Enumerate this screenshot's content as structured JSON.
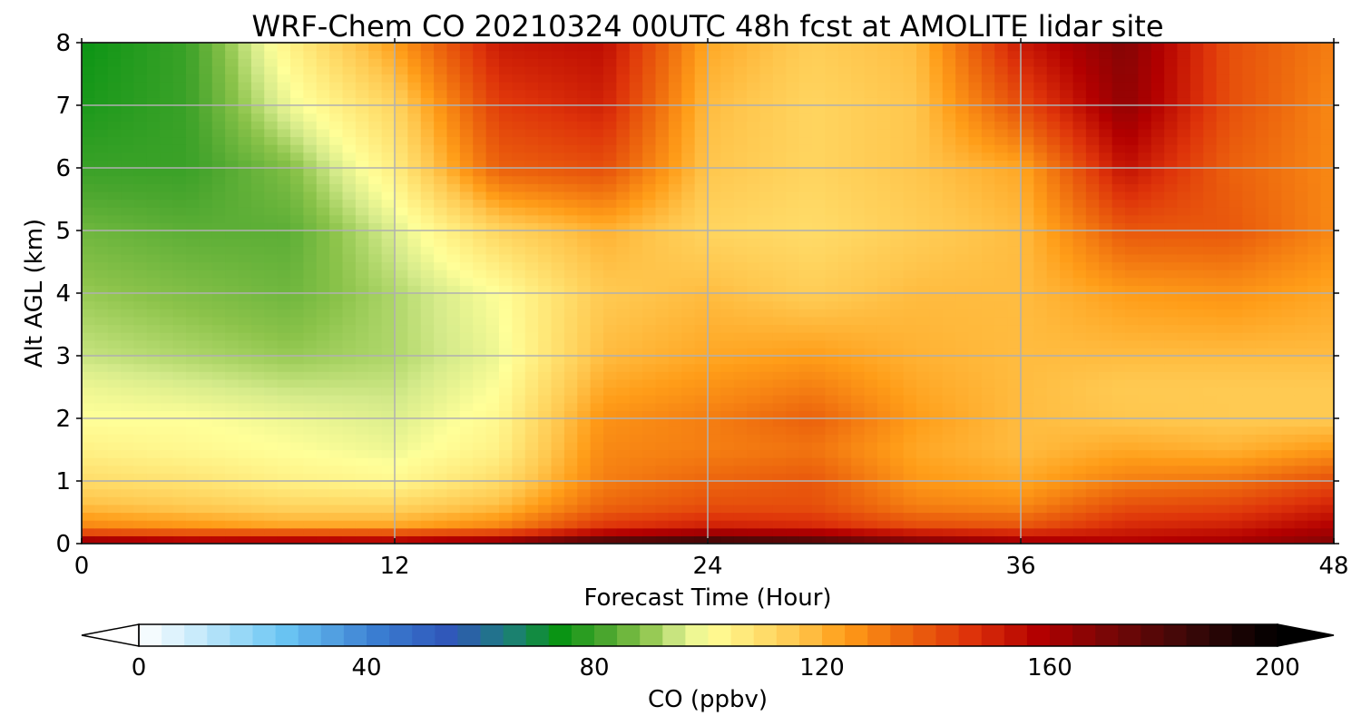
{
  "chart_data": {
    "type": "heatmap",
    "title": "WRF-Chem CO  20210324 00UTC 48h fcst at AMOLITE lidar site",
    "xlabel": "Forecast Time (Hour)",
    "ylabel": "Alt AGL (km)",
    "xlim": [
      0,
      48
    ],
    "ylim": [
      0,
      8
    ],
    "xticks": [
      "0",
      "12",
      "24",
      "36",
      "48"
    ],
    "yticks": [
      "0",
      "1",
      "2",
      "3",
      "4",
      "5",
      "6",
      "7",
      "8"
    ],
    "grid": true,
    "x_hours": [
      0,
      4,
      8,
      12,
      16,
      20,
      24,
      28,
      32,
      36,
      40,
      44,
      48
    ],
    "y_km": [
      0,
      0.1,
      0.3,
      0.6,
      1,
      1.5,
      2,
      2.5,
      3,
      4,
      5,
      6,
      7,
      8
    ],
    "values_ppbv": [
      [
        178,
        170,
        168,
        165,
        175,
        195,
        198,
        190,
        175,
        165,
        160,
        162,
        170
      ],
      [
        150,
        148,
        150,
        150,
        152,
        165,
        170,
        168,
        160,
        155,
        155,
        158,
        165
      ],
      [
        128,
        125,
        122,
        122,
        128,
        145,
        150,
        148,
        140,
        138,
        148,
        150,
        158
      ],
      [
        118,
        115,
        112,
        112,
        118,
        135,
        140,
        140,
        130,
        128,
        140,
        142,
        150
      ],
      [
        110,
        108,
        104,
        102,
        110,
        130,
        135,
        138,
        125,
        122,
        130,
        132,
        140
      ],
      [
        104,
        102,
        100,
        98,
        104,
        128,
        130,
        132,
        122,
        118,
        122,
        120,
        125
      ],
      [
        100,
        100,
        98,
        96,
        102,
        126,
        130,
        136,
        124,
        118,
        116,
        115,
        115
      ],
      [
        98,
        96,
        94,
        94,
        100,
        122,
        126,
        130,
        122,
        118,
        115,
        115,
        115
      ],
      [
        94,
        92,
        90,
        92,
        98,
        118,
        122,
        124,
        120,
        118,
        118,
        118,
        118
      ],
      [
        90,
        88,
        86,
        92,
        100,
        115,
        118,
        114,
        118,
        118,
        124,
        126,
        122
      ],
      [
        86,
        84,
        84,
        96,
        112,
        120,
        112,
        110,
        114,
        118,
        138,
        138,
        128
      ],
      [
        80,
        80,
        88,
        105,
        136,
        140,
        116,
        112,
        116,
        122,
        154,
        136,
        128
      ],
      [
        76,
        80,
        98,
        112,
        144,
        150,
        118,
        112,
        116,
        140,
        165,
        140,
        128
      ],
      [
        74,
        80,
        104,
        124,
        152,
        155,
        122,
        114,
        118,
        152,
        168,
        140,
        130
      ]
    ],
    "colorbar": {
      "label": "CO  (ppbv)",
      "min": 0,
      "max": 200,
      "ticks": [
        "0",
        "40",
        "80",
        "120",
        "160",
        "200"
      ],
      "extend": "both",
      "stops": [
        {
          "v": 0,
          "c": "#ffffff"
        },
        {
          "v": 10,
          "c": "#c9ebfb"
        },
        {
          "v": 25,
          "c": "#6cc7f4"
        },
        {
          "v": 42,
          "c": "#3a7dd1"
        },
        {
          "v": 55,
          "c": "#2f55b8"
        },
        {
          "v": 65,
          "c": "#1d7f7a"
        },
        {
          "v": 74,
          "c": "#0a9414"
        },
        {
          "v": 82,
          "c": "#4aa62e"
        },
        {
          "v": 89,
          "c": "#8bc34a"
        },
        {
          "v": 95,
          "c": "#d4ea8a"
        },
        {
          "v": 100,
          "c": "#ffff99"
        },
        {
          "v": 108,
          "c": "#ffe372"
        },
        {
          "v": 116,
          "c": "#ffc64d"
        },
        {
          "v": 124,
          "c": "#ff9d18"
        },
        {
          "v": 134,
          "c": "#ee6a0e"
        },
        {
          "v": 146,
          "c": "#de330a"
        },
        {
          "v": 158,
          "c": "#b30000"
        },
        {
          "v": 170,
          "c": "#7a0606"
        },
        {
          "v": 184,
          "c": "#3d0808"
        },
        {
          "v": 200,
          "c": "#000000"
        }
      ]
    }
  }
}
